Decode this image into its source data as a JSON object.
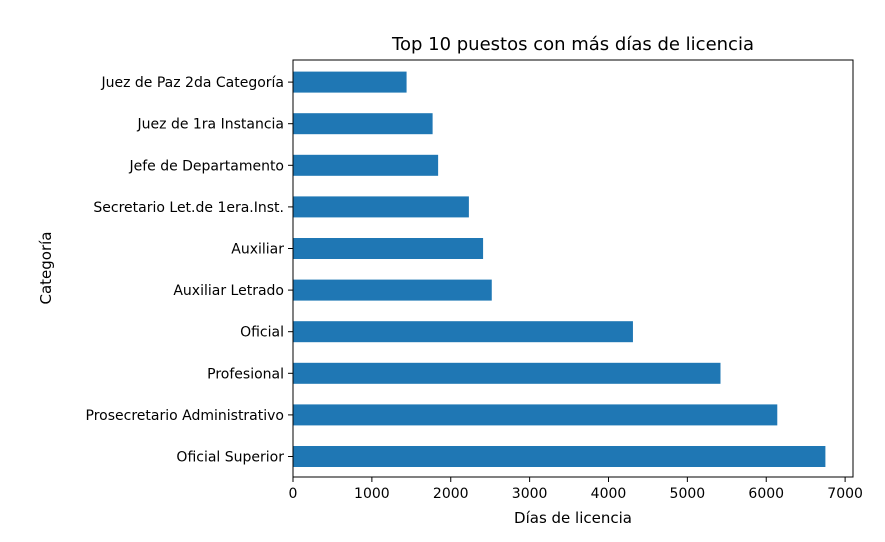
{
  "chart_data": {
    "type": "bar",
    "orientation": "horizontal",
    "title": "Top 10 puestos con más días de licencia",
    "xlabel": "Días de licencia",
    "ylabel": "Categoría",
    "categories": [
      "Oficial Superior",
      "Prosecretario Administrativo",
      "Profesional",
      "Oficial",
      "Auxiliar Letrado",
      "Auxiliar",
      "Secretario Let.de 1era.Inst.",
      "Jefe de Departamento",
      "Juez de 1ra Instancia",
      "Juez de Paz 2da Categoría"
    ],
    "values": [
      6750,
      6140,
      5420,
      4310,
      2520,
      2410,
      2230,
      1840,
      1770,
      1440
    ],
    "xlim": [
      0,
      7100
    ],
    "xticks": [
      0,
      1000,
      2000,
      3000,
      4000,
      5000,
      6000,
      7000
    ],
    "grid": false,
    "legend": "none",
    "bar_color": "#1f77b4"
  }
}
